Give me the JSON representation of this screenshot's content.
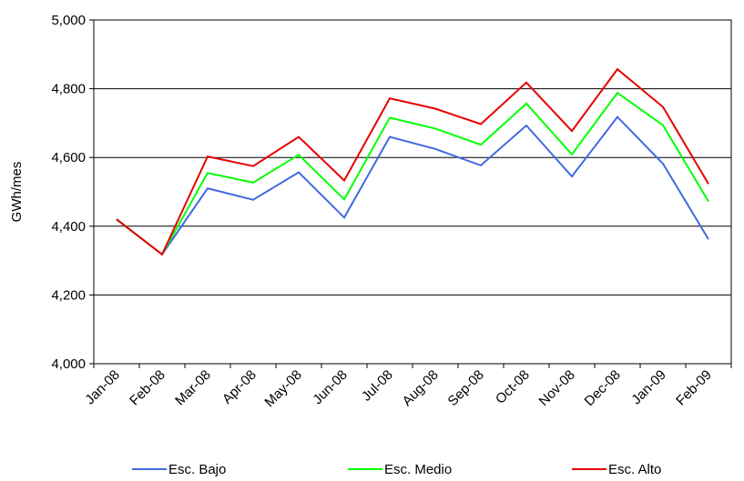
{
  "chart_data": {
    "type": "line",
    "title": "",
    "xlabel": "",
    "ylabel": "GWh/mes",
    "ylim": [
      4000,
      5000
    ],
    "yticks": [
      4000,
      4200,
      4400,
      4600,
      4800,
      5000
    ],
    "ytick_labels": [
      "4,000",
      "4,200",
      "4,400",
      "4,600",
      "4,800",
      "5,000"
    ],
    "categories": [
      "Jan-08",
      "Feb-08",
      "Mar-08",
      "Apr-08",
      "May-08",
      "Jun-08",
      "Jul-08",
      "Aug-08",
      "Sep-08",
      "Oct-08",
      "Nov-08",
      "Dec-08",
      "Jan-09",
      "Feb-09"
    ],
    "grid": "horizontal",
    "legend_position": "bottom",
    "series": [
      {
        "name": "Esc. Bajo",
        "color": "#4169e1",
        "values": [
          4420,
          4318,
          4510,
          4477,
          4557,
          4425,
          4660,
          4625,
          4577,
          4693,
          4545,
          4718,
          4582,
          4362
        ]
      },
      {
        "name": "Esc. Medio",
        "color": "#00ff00",
        "values": [
          4420,
          4318,
          4555,
          4527,
          4608,
          4478,
          4716,
          4684,
          4637,
          4757,
          4609,
          4788,
          4694,
          4472
        ]
      },
      {
        "name": "Esc. Alto",
        "color": "#e60000",
        "values": [
          4420,
          4318,
          4603,
          4575,
          4660,
          4533,
          4772,
          4742,
          4697,
          4818,
          4677,
          4857,
          4747,
          4523
        ]
      }
    ]
  }
}
